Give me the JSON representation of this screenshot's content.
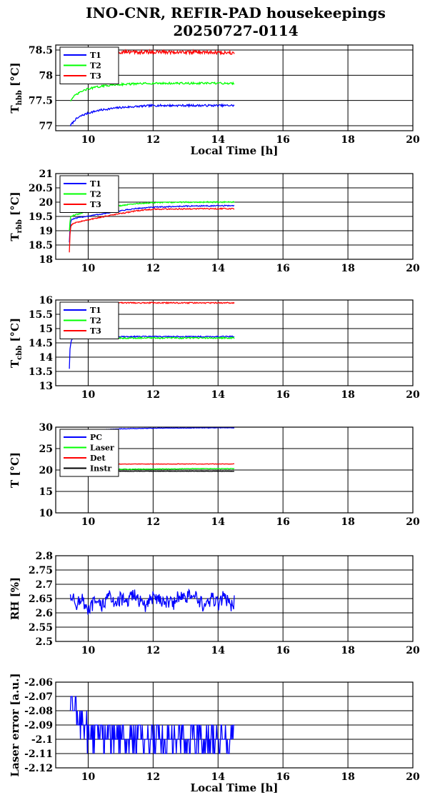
{
  "title_line1": "INO-CNR, REFIR-PAD housekeepings",
  "title_line2": "20250727-0114",
  "chart_data": [
    {
      "type": "line",
      "ylabel_main": "T",
      "ylabel_sub": "hbb",
      "ylabel_unit": " [°C]",
      "xlabel": "Local Time [h]",
      "xlim": [
        9,
        20
      ],
      "xticks": [
        10,
        12,
        14,
        16,
        18,
        20
      ],
      "ylim": [
        76.9,
        78.6
      ],
      "yticks": [
        77,
        77.5,
        78,
        78.5
      ],
      "ytick_labels": [
        "77",
        "77.5",
        "78",
        "78.5"
      ],
      "legend": "top-left",
      "series": [
        {
          "name": "T1",
          "color": "#0000ff",
          "x": [
            9.45,
            9.6,
            9.8,
            10.0,
            10.3,
            10.6,
            11.0,
            11.5,
            12.0,
            12.5,
            13.0,
            13.5,
            14.0,
            14.5
          ],
          "y": [
            77.0,
            77.12,
            77.2,
            77.25,
            77.3,
            77.33,
            77.36,
            77.38,
            77.4,
            77.4,
            77.4,
            77.4,
            77.4,
            77.4
          ],
          "noise": 0.02
        },
        {
          "name": "T2",
          "color": "#00ff00",
          "x": [
            9.45,
            9.6,
            9.8,
            10.0,
            10.3,
            10.6,
            11.0,
            11.5,
            12.0,
            12.5,
            13.0,
            13.5,
            14.0,
            14.5
          ],
          "y": [
            77.5,
            77.6,
            77.68,
            77.73,
            77.77,
            77.8,
            77.82,
            77.83,
            77.84,
            77.84,
            77.84,
            77.84,
            77.84,
            77.84
          ],
          "noise": 0.02
        },
        {
          "name": "T3",
          "color": "#ff0000",
          "x": [
            9.45,
            9.6,
            10.0,
            11.0,
            12.0,
            13.0,
            14.0,
            14.5
          ],
          "y": [
            78.5,
            78.48,
            78.46,
            78.46,
            78.46,
            78.46,
            78.45,
            78.45
          ],
          "noise": 0.035
        }
      ]
    },
    {
      "type": "line",
      "ylabel_main": "T",
      "ylabel_sub": "rbb",
      "ylabel_unit": " [°C]",
      "xlabel": "",
      "xlim": [
        9,
        20
      ],
      "xticks": [
        10,
        12,
        14,
        16,
        18,
        20
      ],
      "ylim": [
        18,
        21
      ],
      "yticks": [
        18,
        18.5,
        19,
        19.5,
        20,
        20.5,
        21
      ],
      "ytick_labels": [
        "18",
        "18.5",
        "19",
        "19.5",
        "20",
        "20.5",
        "21"
      ],
      "legend": "top-left",
      "series": [
        {
          "name": "T1",
          "color": "#0000ff",
          "x": [
            9.42,
            9.45,
            9.5,
            9.8,
            10.5,
            11.0,
            11.5,
            12.0,
            12.5,
            13.0,
            13.5,
            14.0,
            14.5
          ],
          "y": [
            18.6,
            19.3,
            19.4,
            19.48,
            19.6,
            19.7,
            19.78,
            19.82,
            19.84,
            19.86,
            19.87,
            19.87,
            19.88
          ],
          "noise": 0.02
        },
        {
          "name": "T2",
          "color": "#00ff00",
          "x": [
            9.42,
            9.45,
            9.5,
            9.8,
            10.5,
            11.0,
            11.5,
            12.0,
            12.5,
            13.0,
            13.5,
            14.0,
            14.5
          ],
          "y": [
            19.0,
            19.45,
            19.52,
            19.62,
            19.78,
            19.88,
            19.95,
            19.98,
            19.99,
            20.0,
            20.0,
            20.0,
            20.0
          ],
          "noise": 0.02
        },
        {
          "name": "T3",
          "color": "#ff0000",
          "x": [
            9.42,
            9.44,
            9.47,
            9.6,
            10.0,
            10.5,
            11.0,
            11.5,
            12.0,
            12.5,
            13.0,
            13.5,
            14.0,
            14.5
          ],
          "y": [
            18.25,
            18.9,
            19.2,
            19.28,
            19.38,
            19.5,
            19.6,
            19.7,
            19.75,
            19.76,
            19.76,
            19.77,
            19.77,
            19.77
          ],
          "noise": 0.02
        }
      ]
    },
    {
      "type": "line",
      "ylabel_main": "T",
      "ylabel_sub": "cbb",
      "ylabel_unit": " [°C]",
      "xlabel": "",
      "xlim": [
        9,
        20
      ],
      "xticks": [
        10,
        12,
        14,
        16,
        18,
        20
      ],
      "ylim": [
        13,
        16
      ],
      "yticks": [
        13,
        13.5,
        14,
        14.5,
        15,
        15.5,
        16
      ],
      "ytick_labels": [
        "13",
        "13.5",
        "14",
        "14.5",
        "15",
        "15.5",
        "16"
      ],
      "legend": "top-left",
      "series": [
        {
          "name": "T1",
          "color": "#0000ff",
          "x": [
            9.42,
            9.44,
            9.48,
            9.6,
            10.0,
            11.0,
            12.0,
            13.0,
            14.0,
            14.5
          ],
          "y": [
            13.6,
            14.3,
            14.6,
            14.7,
            14.72,
            14.72,
            14.72,
            14.72,
            14.72,
            14.72
          ],
          "noise": 0.02
        },
        {
          "name": "T2",
          "color": "#00ff00",
          "x": [
            9.45,
            9.6,
            10.0,
            11.0,
            12.0,
            13.0,
            14.0,
            14.5
          ],
          "y": [
            14.7,
            14.68,
            14.67,
            14.67,
            14.67,
            14.67,
            14.67,
            14.67
          ],
          "noise": 0.025
        },
        {
          "name": "T3",
          "color": "#ff0000",
          "x": [
            9.45,
            9.6,
            10.0,
            11.0,
            12.0,
            13.0,
            14.0,
            14.5
          ],
          "y": [
            15.88,
            15.88,
            15.88,
            15.9,
            15.9,
            15.9,
            15.9,
            15.9
          ],
          "noise": 0.02
        }
      ]
    },
    {
      "type": "line",
      "ylabel_main": "T",
      "ylabel_sub": "",
      "ylabel_unit": " [°C]",
      "xlabel": "",
      "xlim": [
        9,
        20
      ],
      "xticks": [
        10,
        12,
        14,
        16,
        18,
        20
      ],
      "ylim": [
        10,
        30
      ],
      "yticks": [
        10,
        15,
        20,
        25,
        30
      ],
      "ytick_labels": [
        "10",
        "15",
        "20",
        "25",
        "30"
      ],
      "legend": "top-left",
      "series": [
        {
          "name": "PC",
          "color": "#0000ff",
          "x": [
            9.4,
            10.0,
            11.0,
            12.0,
            13.0,
            14.0,
            14.5
          ],
          "y": [
            29.0,
            29.3,
            29.6,
            29.75,
            29.8,
            29.85,
            29.85
          ],
          "noise": 0.05
        },
        {
          "name": "Laser",
          "color": "#00ff00",
          "x": [
            9.4,
            10.0,
            11.0,
            12.0,
            13.0,
            14.0,
            14.5
          ],
          "y": [
            20.2,
            20.2,
            20.2,
            20.2,
            20.3,
            20.3,
            20.3
          ],
          "noise": 0.08
        },
        {
          "name": "Det",
          "color": "#ff0000",
          "x": [
            9.4,
            10.0,
            11.0,
            12.0,
            13.0,
            14.0,
            14.5
          ],
          "y": [
            21.3,
            21.3,
            21.4,
            21.4,
            21.4,
            21.4,
            21.4
          ],
          "noise": 0.05
        },
        {
          "name": "Instr",
          "color": "#000000",
          "x": [
            9.4,
            10.0,
            11.0,
            12.0,
            13.0,
            14.0,
            14.5
          ],
          "y": [
            19.7,
            19.7,
            19.7,
            19.7,
            19.7,
            19.7,
            19.7
          ],
          "noise": 0.05
        }
      ]
    },
    {
      "type": "line",
      "ylabel_main": "RH [%]",
      "ylabel_sub": "",
      "ylabel_unit": "",
      "xlabel": "",
      "xlim": [
        9,
        20
      ],
      "xticks": [
        10,
        12,
        14,
        16,
        18,
        20
      ],
      "ylim": [
        2.5,
        2.8
      ],
      "yticks": [
        2.5,
        2.55,
        2.6,
        2.65,
        2.7,
        2.75,
        2.8
      ],
      "ytick_labels": [
        "2.5",
        "2.55",
        "2.6",
        "2.65",
        "2.7",
        "2.75",
        "2.8"
      ],
      "legend": "",
      "series": [
        {
          "name": "",
          "color": "#0000ff",
          "x": [
            9.45,
            9.6,
            9.8,
            10.0,
            10.2,
            10.4,
            10.6,
            10.8,
            11.0,
            11.2,
            11.4,
            11.6,
            11.8,
            12.0,
            12.2,
            12.4,
            12.6,
            12.8,
            13.0,
            13.2,
            13.4,
            13.6,
            13.8,
            14.0,
            14.2,
            14.4,
            14.5
          ],
          "y": [
            2.67,
            2.63,
            2.65,
            2.6,
            2.64,
            2.62,
            2.66,
            2.64,
            2.65,
            2.63,
            2.67,
            2.64,
            2.62,
            2.66,
            2.65,
            2.64,
            2.63,
            2.66,
            2.65,
            2.67,
            2.64,
            2.62,
            2.65,
            2.63,
            2.66,
            2.62,
            2.64
          ],
          "noise": 0.025
        }
      ]
    },
    {
      "type": "line",
      "ylabel_main": "Laser error [a.u.]",
      "ylabel_sub": "",
      "ylabel_unit": "",
      "xlabel": "Local Time [h]",
      "xlim": [
        9,
        20
      ],
      "xticks": [
        10,
        12,
        14,
        16,
        18,
        20
      ],
      "ylim": [
        -2.12,
        -2.06
      ],
      "yticks": [
        -2.12,
        -2.11,
        -2.1,
        -2.09,
        -2.08,
        -2.07,
        -2.06
      ],
      "ytick_labels": [
        "-2.12",
        "-2.11",
        "-2.1",
        "-2.09",
        "-2.08",
        "-2.07",
        "-2.06"
      ],
      "legend": "",
      "series": [
        {
          "name": "",
          "color": "#0000ff",
          "step": 0.01,
          "x": [
            9.45,
            10.0,
            11.0,
            12.0,
            13.0,
            14.0,
            14.5
          ],
          "y": [
            -2.075,
            -2.095,
            -2.1,
            -2.1,
            -2.1,
            -2.1,
            -2.1
          ],
          "noise": 0.012
        }
      ]
    }
  ]
}
